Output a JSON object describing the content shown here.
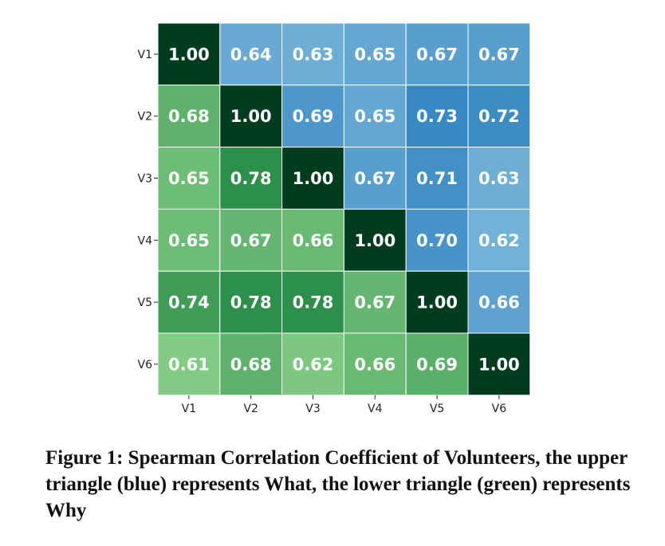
{
  "chart_data": {
    "type": "heatmap",
    "rows": [
      "V1",
      "V2",
      "V3",
      "V4",
      "V5",
      "V6"
    ],
    "cols": [
      "V1",
      "V2",
      "V3",
      "V4",
      "V5",
      "V6"
    ],
    "values": [
      [
        1.0,
        0.64,
        0.63,
        0.65,
        0.67,
        0.67
      ],
      [
        0.68,
        1.0,
        0.69,
        0.65,
        0.73,
        0.72
      ],
      [
        0.65,
        0.78,
        1.0,
        0.67,
        0.71,
        0.63
      ],
      [
        0.65,
        0.67,
        0.66,
        1.0,
        0.7,
        0.62
      ],
      [
        0.74,
        0.78,
        0.78,
        0.67,
        1.0,
        0.66
      ],
      [
        0.61,
        0.68,
        0.62,
        0.66,
        0.69,
        1.0
      ]
    ],
    "labels": [
      [
        "1.00",
        "0.64",
        "0.63",
        "0.65",
        "0.67",
        "0.67"
      ],
      [
        "0.68",
        "1.00",
        "0.69",
        "0.65",
        "0.73",
        "0.72"
      ],
      [
        "0.65",
        "0.78",
        "1.00",
        "0.67",
        "0.71",
        "0.63"
      ],
      [
        "0.65",
        "0.67",
        "0.66",
        "1.00",
        "0.70",
        "0.62"
      ],
      [
        "0.74",
        "0.78",
        "0.78",
        "0.67",
        "1.00",
        "0.66"
      ],
      [
        "0.61",
        "0.68",
        "0.62",
        "0.66",
        "0.69",
        "1.00"
      ]
    ],
    "colormaps": {
      "upper": "blue",
      "lower": "green",
      "diagonal": "#003d1f"
    },
    "grid": true
  },
  "caption": "Figure 1: Spearman Correlation Coefficient of Volunteers, the upper triangle (blue) represents What, the lower triangle (green) represents Why"
}
